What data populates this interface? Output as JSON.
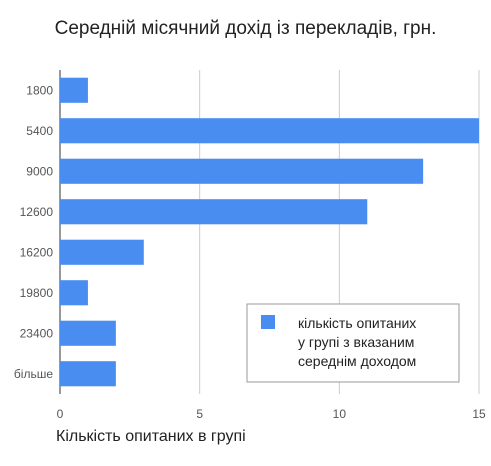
{
  "chart_data": {
    "type": "bar",
    "orientation": "horizontal",
    "title": "Середній місячний дохід із перекладів, грн.",
    "xlabel": "Кількість опитаних в групі",
    "ylabel": "",
    "categories": [
      "1800",
      "5400",
      "9000",
      "12600",
      "16200",
      "19800",
      "23400",
      "більше"
    ],
    "series": [
      {
        "name": "кількість опитаних у групі з вказаним середнім доходом",
        "values": [
          1,
          15,
          13,
          11,
          3,
          1,
          2,
          2
        ],
        "color": "#4a8df0"
      }
    ],
    "xlim": [
      0,
      15
    ],
    "x_ticks": [
      "0",
      "5",
      "10",
      "15"
    ],
    "grid": true,
    "legend_position": "right",
    "legend_lines": [
      "кількість опитаних",
      "у групі з вказаним",
      "середнім доходом"
    ]
  }
}
